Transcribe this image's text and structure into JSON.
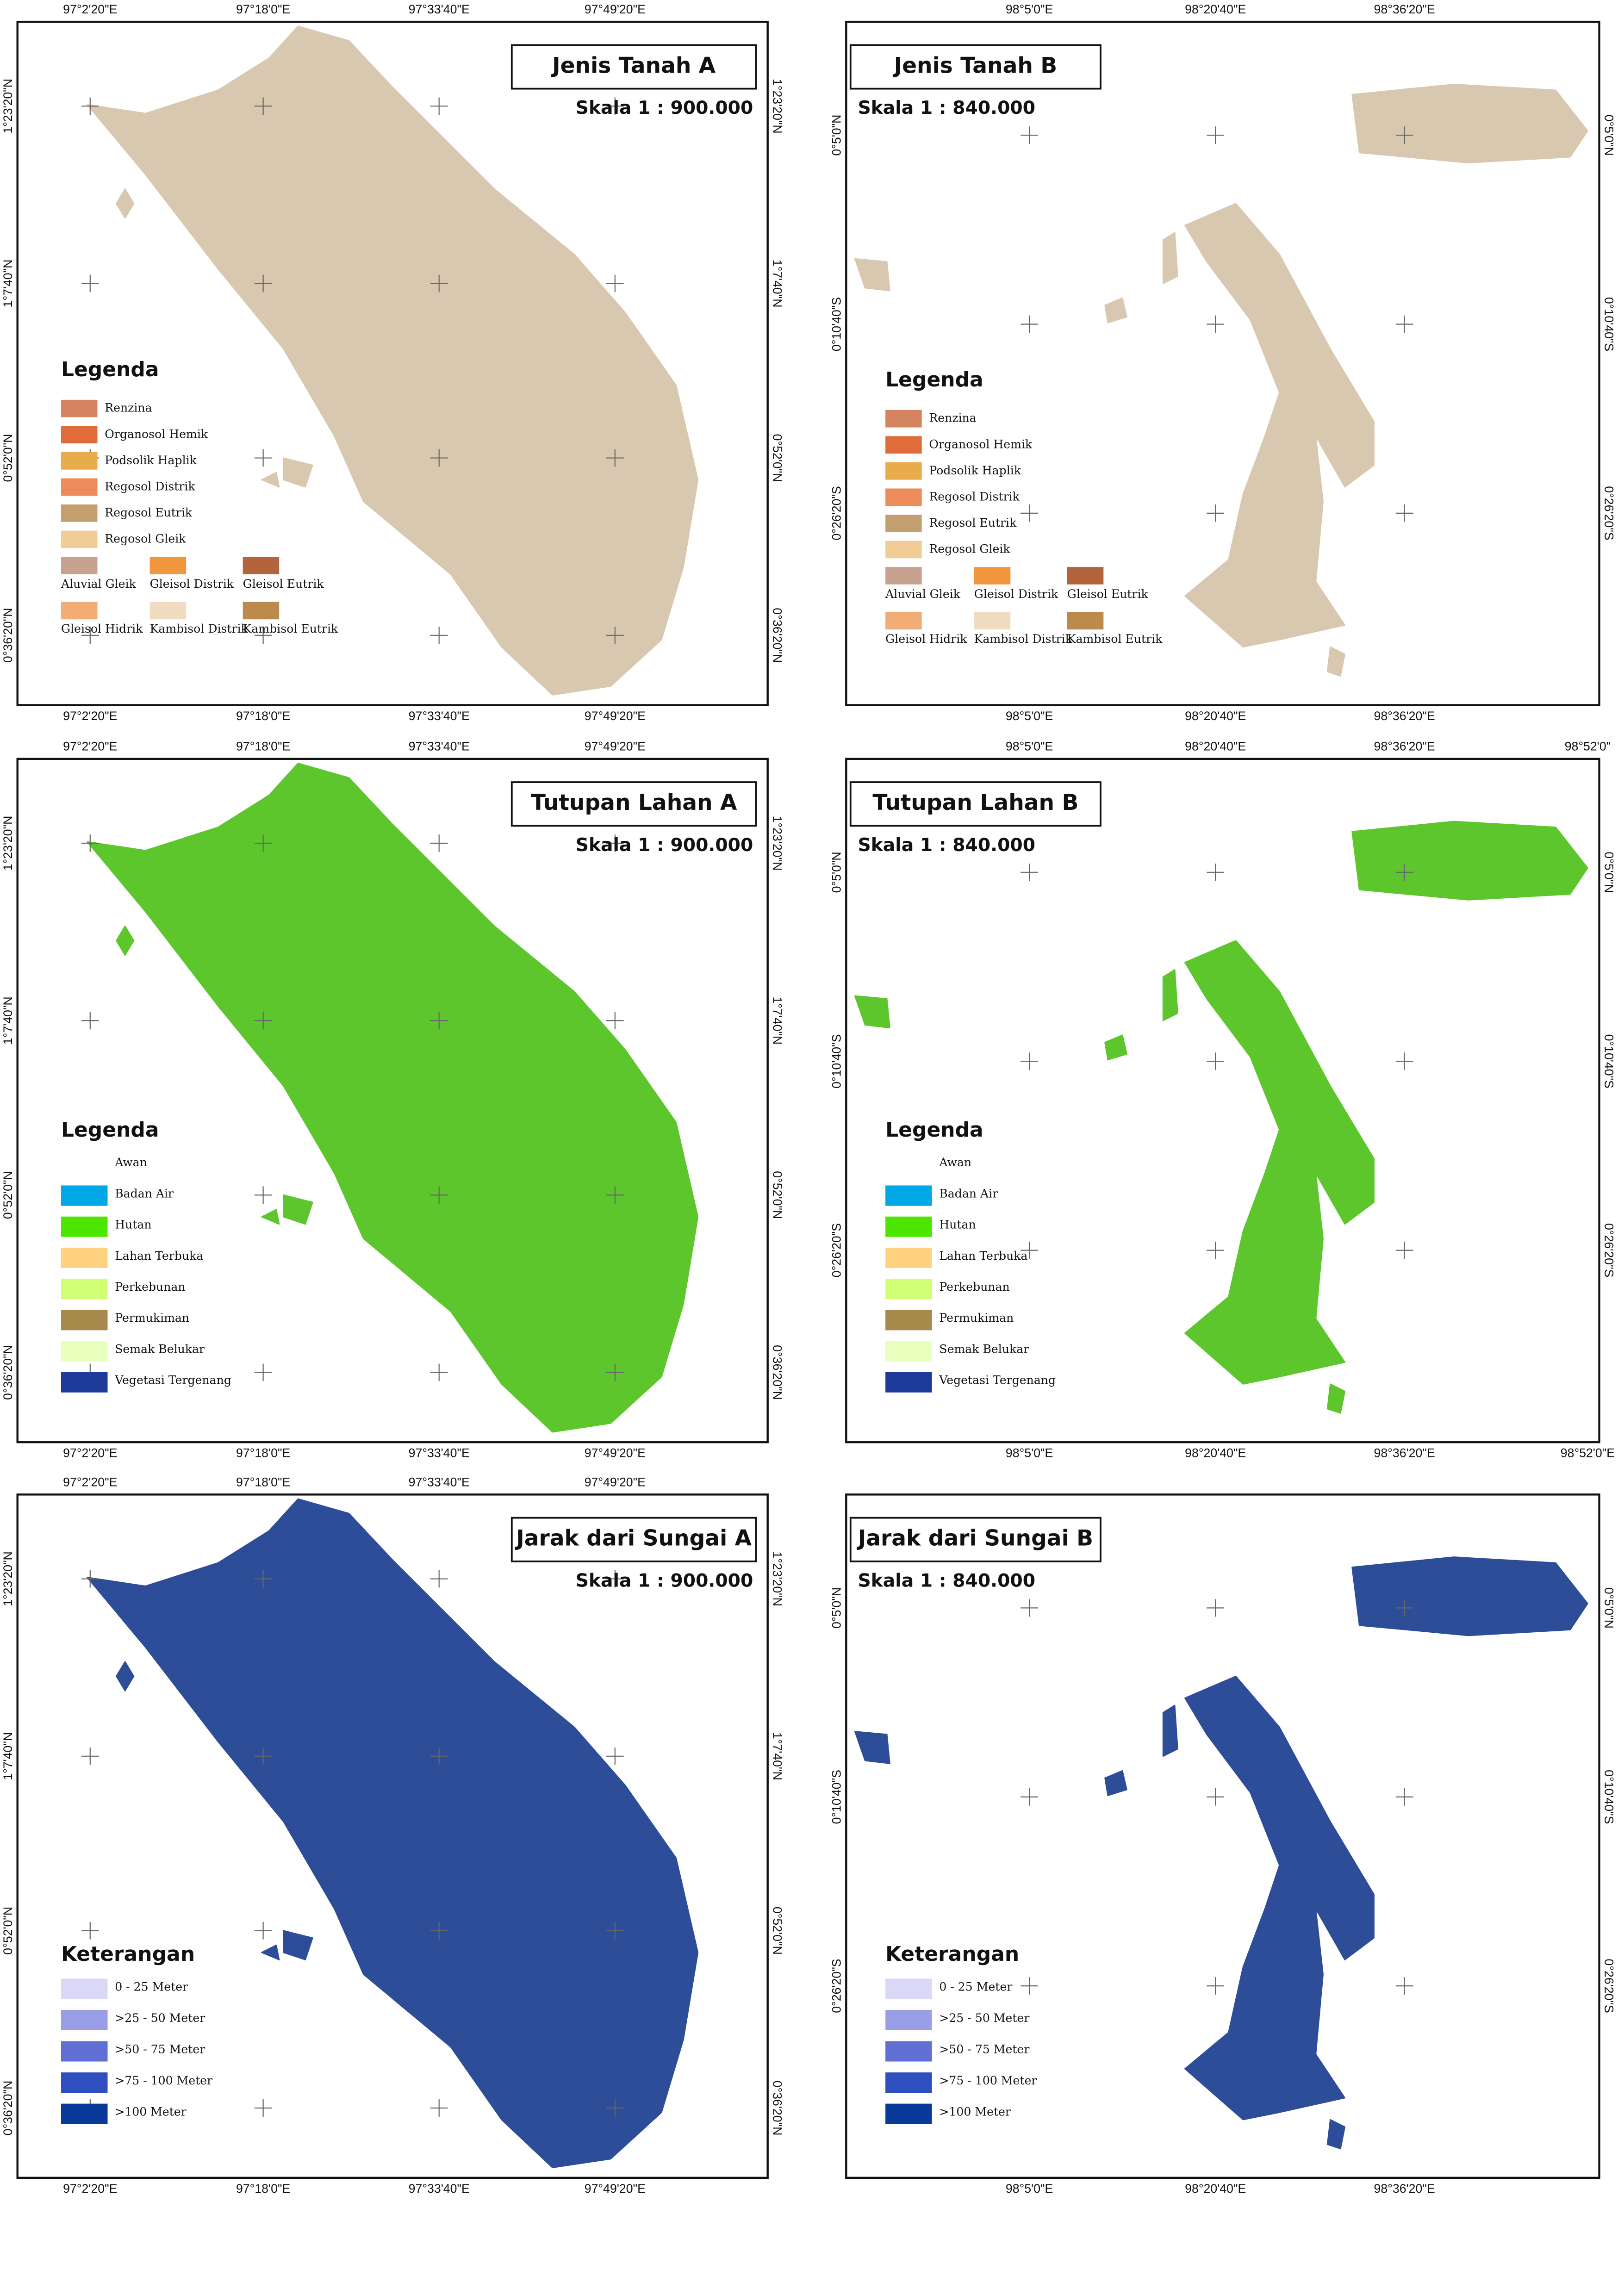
{
  "panels": [
    {
      "title": "Jenis Tanah A",
      "scale": "Skala 1 : 900.000",
      "top_ticks": [
        "97°2'20\"E",
        "97°18'0\"E",
        "97°33'40\"E",
        "97°49'20\"E"
      ],
      "bottom_ticks": [
        "97°2'20\"E",
        "97°18'0\"E",
        "97°33'40\"E",
        "97°49'20\"E"
      ],
      "left_ticks": [
        "1°23'20\"N",
        "1°7'40\"N",
        "0°52'0\"N",
        "0°36'20\"N"
      ],
      "right_ticks": [
        "1°23'20\"N",
        "1°7'40\"N",
        "0°52'0\"N",
        "0°36'20\"N"
      ],
      "legend_title": "Legenda",
      "legend": [
        {
          "label": "Renzina",
          "color": "#d4845e"
        },
        {
          "label": "Organosol Hemik",
          "color": "#e06c3a"
        },
        {
          "label": "Podsolik Haplik",
          "color": "#e8ac4c"
        },
        {
          "label": "Regosol Distrik",
          "color": "#ec8c5a"
        },
        {
          "label": "Regosol Eutrik",
          "color": "#c4a070"
        },
        {
          "label": "Regosol Gleik",
          "color": "#f2cc96"
        },
        {
          "label": "Aluvial Gleik",
          "color": "#c8a290"
        },
        {
          "label": "Gleisol Distrik",
          "color": "#f0963c"
        },
        {
          "label": "Gleisol Eutrik",
          "color": "#b4643c"
        },
        {
          "label": "Gleisol Hidrik",
          "color": "#f2ac76"
        },
        {
          "label": "Kambisol Distrik",
          "color": "#f0dcc0"
        },
        {
          "label": "Kambisol Eutrik",
          "color": "#bc8a4c"
        }
      ]
    },
    {
      "title": "Jenis Tanah B",
      "scale": "Skala 1 : 840.000",
      "top_ticks": [
        "98°5'0\"E",
        "98°20'40\"E",
        "98°36'20\"E"
      ],
      "bottom_ticks": [
        "98°5'0\"E",
        "98°20'40\"E",
        "98°36'20\"E"
      ],
      "left_ticks": [
        "0°5'0\"N",
        "0°10'40\"S",
        "0°26'20\"S"
      ],
      "right_ticks": [
        "0°5'0\"N",
        "0°10'40\"S",
        "0°26'20\"S"
      ],
      "legend_title": "Legenda",
      "legend": [
        {
          "label": "Renzina",
          "color": "#d4845e"
        },
        {
          "label": "Organosol Hemik",
          "color": "#e06c3a"
        },
        {
          "label": "Podsolik Haplik",
          "color": "#e8ac4c"
        },
        {
          "label": "Regosol Distrik",
          "color": "#ec8c5a"
        },
        {
          "label": "Regosol Eutrik",
          "color": "#c4a070"
        },
        {
          "label": "Regosol Gleik",
          "color": "#f2cc96"
        },
        {
          "label": "Aluvial Gleik",
          "color": "#c8a290"
        },
        {
          "label": "Gleisol Distrik",
          "color": "#f0963c"
        },
        {
          "label": "Gleisol Eutrik",
          "color": "#b4643c"
        },
        {
          "label": "Gleisol Hidrik",
          "color": "#f2ac76"
        },
        {
          "label": "Kambisol Distrik",
          "color": "#f0dcc0"
        },
        {
          "label": "Kambisol Eutrik",
          "color": "#bc8a4c"
        }
      ]
    },
    {
      "title": "Tutupan Lahan A",
      "scale": "Skala 1 : 900.000",
      "top_ticks": [
        "97°2'20\"E",
        "97°18'0\"E",
        "97°33'40\"E",
        "97°49'20\"E"
      ],
      "bottom_ticks": [
        "97°2'20\"E",
        "97°18'0\"E",
        "97°33'40\"E",
        "97°49'20\"E"
      ],
      "left_ticks": [
        "1°23'20\"N",
        "1°7'40\"N",
        "0°52'0\"N",
        "0°36'20\"N"
      ],
      "right_ticks": [
        "1°23'20\"N",
        "1°7'40\"N",
        "0°52'0\"N",
        "0°36'20\"N"
      ],
      "legend_title": "Legenda",
      "legend": [
        {
          "label": "Awan",
          "color": "#ffffff"
        },
        {
          "label": "Badan Air",
          "color": "#00a8e6"
        },
        {
          "label": "Hutan",
          "color": "#4ce600"
        },
        {
          "label": "Lahan Terbuka",
          "color": "#ffd27f"
        },
        {
          "label": "Perkebunan",
          "color": "#d1ff73"
        },
        {
          "label": "Permukiman",
          "color": "#a8894c"
        },
        {
          "label": "Semak Belukar",
          "color": "#e9ffbe"
        },
        {
          "label": "Vegetasi Tergenang",
          "color": "#1f3b99"
        }
      ]
    },
    {
      "title": "Tutupan Lahan B",
      "scale": "Skala 1 : 840.000",
      "top_ticks": [
        "98°5'0\"E",
        "98°20'40\"E",
        "98°36'20\"E",
        "98°52'0\""
      ],
      "bottom_ticks": [
        "98°5'0\"E",
        "98°20'40\"E",
        "98°36'20\"E",
        "98°52'0\"E"
      ],
      "left_ticks": [
        "0°5'0\"N",
        "0°10'40\"S",
        "0°26'20\"S"
      ],
      "right_ticks": [
        "0°5'0\"N",
        "0°10'40\"S",
        "0°26'20\"S"
      ],
      "legend_title": "Legenda",
      "legend": [
        {
          "label": "Awan",
          "color": "#ffffff"
        },
        {
          "label": "Badan Air",
          "color": "#00a8e6"
        },
        {
          "label": "Hutan",
          "color": "#4ce600"
        },
        {
          "label": "Lahan Terbuka",
          "color": "#ffd27f"
        },
        {
          "label": "Perkebunan",
          "color": "#d1ff73"
        },
        {
          "label": "Permukiman",
          "color": "#a8894c"
        },
        {
          "label": "Semak Belukar",
          "color": "#e9ffbe"
        },
        {
          "label": "Vegetasi Tergenang",
          "color": "#1f3b99"
        }
      ]
    },
    {
      "title": "Jarak dari Sungai A",
      "scale": "Skala 1 : 900.000",
      "top_ticks": [
        "97°2'20\"E",
        "97°18'0\"E",
        "97°33'40\"E",
        "97°49'20\"E"
      ],
      "bottom_ticks": [
        "97°2'20\"E",
        "97°18'0\"E",
        "97°33'40\"E",
        "97°49'20\"E"
      ],
      "left_ticks": [
        "1°23'20\"N",
        "1°7'40\"N",
        "0°52'0\"N",
        "0°36'20\"N"
      ],
      "right_ticks": [
        "1°23'20\"N",
        "1°7'40\"N",
        "0°52'0\"N",
        "0°36'20\"N"
      ],
      "legend_title": "Keterangan",
      "legend": [
        {
          "label": "0 - 25 Meter",
          "color": "#d9d9f7"
        },
        {
          "label": ">25 - 50 Meter",
          "color": "#9a9ee8"
        },
        {
          "label": ">50 - 75 Meter",
          "color": "#5f6fd4"
        },
        {
          "label": ">75 - 100 Meter",
          "color": "#2f4fbf"
        },
        {
          "label": ">100 Meter",
          "color": "#0a3a99"
        }
      ]
    },
    {
      "title": "Jarak dari Sungai B",
      "scale": "Skala 1 : 840.000",
      "top_ticks": [],
      "bottom_ticks": [
        "98°5'0\"E",
        "98°20'40\"E",
        "98°36'20\"E"
      ],
      "left_ticks": [
        "0°5'0\"N",
        "0°10'40\"S",
        "0°26'20\"S"
      ],
      "right_ticks": [
        "0°5'0\"N",
        "0°10'40\"S",
        "0°26'20\"S"
      ],
      "legend_title": "Keterangan",
      "legend": [
        {
          "label": "0 - 25 Meter",
          "color": "#d9d9f7"
        },
        {
          "label": ">25 - 50 Meter",
          "color": "#9a9ee8"
        },
        {
          "label": ">50 - 75 Meter",
          "color": "#5f6fd4"
        },
        {
          "label": ">75 - 100 Meter",
          "color": "#2f4fbf"
        },
        {
          "label": ">100 Meter",
          "color": "#0a3a99"
        }
      ]
    }
  ]
}
